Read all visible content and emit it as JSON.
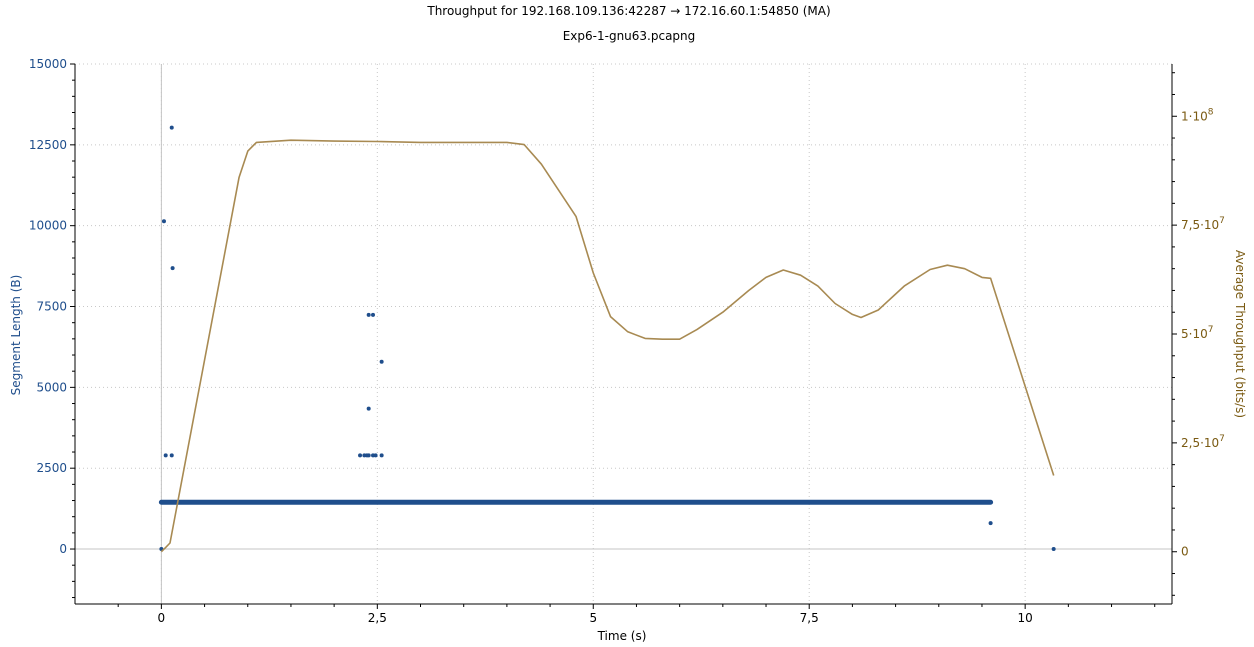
{
  "title": "Throughput for 192.168.109.136:42287 → 172.16.60.1:54850 (MA)",
  "subtitle": "Exp6-1-gnu63.pcapng",
  "colors": {
    "segments": "#1f4e8c",
    "throughput": "#a88a52",
    "left_axis": "#1f4e8c",
    "right_axis": "#7a5a12",
    "grid": "#c8c8c8"
  },
  "chart_data": {
    "type": "scatter",
    "title": "Throughput for 192.168.109.136:42287 → 172.16.60.1:54850 (MA)",
    "subtitle": "Exp6-1-gnu63.pcapng",
    "xlabel": "Time (s)",
    "ylabel": "Segment Length (B)",
    "y2label": "Average Throughput (bits/s)",
    "xlim": [
      -1.0,
      11.7
    ],
    "ylim": [
      -1700,
      15000
    ],
    "y2lim": [
      -12000000.0,
      112000000.0
    ],
    "xticks": [
      0,
      2.5,
      5,
      7.5,
      10
    ],
    "xtick_labels": [
      "0",
      "2,5",
      "5",
      "7,5",
      "10"
    ],
    "yticks": [
      0,
      2500,
      5000,
      7500,
      10000,
      12500,
      15000
    ],
    "ytick_labels": [
      "0",
      "2500",
      "5000",
      "7500",
      "10000",
      "12500",
      "15000"
    ],
    "y2ticks": [
      0,
      25000000,
      50000000,
      75000000,
      100000000
    ],
    "y2tick_labels": [
      "0",
      "2,5·10",
      "5·10",
      "7,5·10",
      "1·10"
    ],
    "y2tick_exponents": [
      "",
      "7",
      "7",
      "7",
      "8"
    ],
    "grid": true,
    "legend": "none",
    "series": [
      {
        "type": "scatter",
        "axis": "left",
        "band": {
          "x_start": 0.0,
          "x_end": 9.6,
          "y": 1448
        },
        "points": [
          [
            0.0,
            0
          ],
          [
            0.05,
            2896
          ],
          [
            0.12,
            2896
          ],
          [
            0.03,
            10136
          ],
          [
            0.12,
            13032
          ],
          [
            0.13,
            8688
          ],
          [
            2.3,
            2896
          ],
          [
            2.35,
            2896
          ],
          [
            2.38,
            2896
          ],
          [
            2.4,
            2896
          ],
          [
            2.45,
            2896
          ],
          [
            2.48,
            2896
          ],
          [
            2.55,
            2896
          ],
          [
            2.4,
            7240
          ],
          [
            2.45,
            7240
          ],
          [
            2.55,
            5792
          ],
          [
            2.4,
            4344
          ],
          [
            8.73,
            1448
          ],
          [
            9.6,
            800
          ],
          [
            10.33,
            0
          ]
        ]
      },
      {
        "type": "line",
        "axis": "right",
        "points": [
          [
            0,
            0
          ],
          [
            0.05,
            1000000
          ],
          [
            0.1,
            2000000
          ],
          [
            0.9,
            86000000
          ],
          [
            1.0,
            92000000
          ],
          [
            1.1,
            94000000
          ],
          [
            1.5,
            94500000
          ],
          [
            2.0,
            94300000
          ],
          [
            2.5,
            94200000
          ],
          [
            3.0,
            94000000
          ],
          [
            3.5,
            94000000
          ],
          [
            4.0,
            94000000
          ],
          [
            4.2,
            93500000
          ],
          [
            4.4,
            89000000
          ],
          [
            4.6,
            83000000
          ],
          [
            4.8,
            77000000
          ],
          [
            5.0,
            64000000
          ],
          [
            5.2,
            54000000
          ],
          [
            5.4,
            50500000
          ],
          [
            5.6,
            49000000
          ],
          [
            5.8,
            48800000
          ],
          [
            6.0,
            48800000
          ],
          [
            6.2,
            51000000
          ],
          [
            6.5,
            55000000
          ],
          [
            6.8,
            60000000
          ],
          [
            7.0,
            63000000
          ],
          [
            7.2,
            64700000
          ],
          [
            7.4,
            63500000
          ],
          [
            7.6,
            61000000
          ],
          [
            7.8,
            57000000
          ],
          [
            8.0,
            54500000
          ],
          [
            8.1,
            53800000
          ],
          [
            8.3,
            55500000
          ],
          [
            8.6,
            61000000
          ],
          [
            8.9,
            64800000
          ],
          [
            9.1,
            65800000
          ],
          [
            9.3,
            65000000
          ],
          [
            9.5,
            63000000
          ],
          [
            9.6,
            62800000
          ],
          [
            10.33,
            17500000
          ]
        ]
      }
    ]
  }
}
